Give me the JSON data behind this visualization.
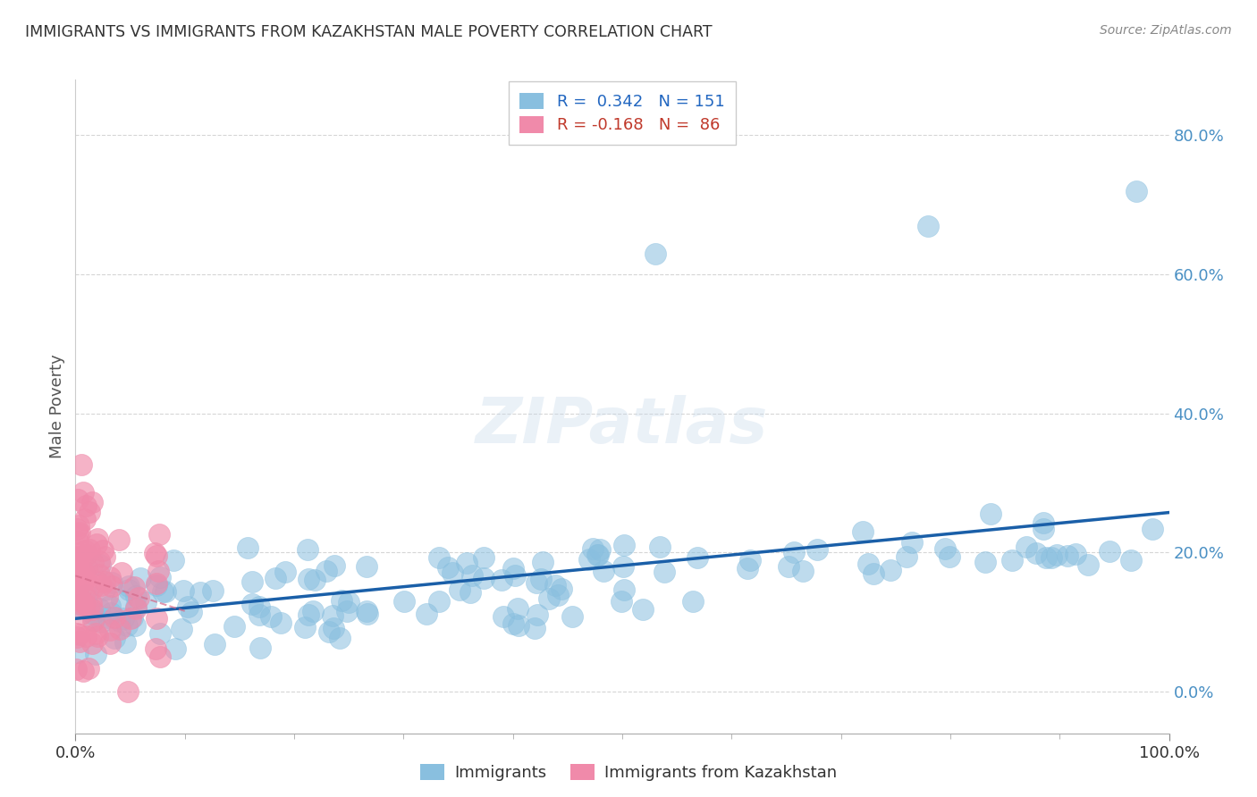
{
  "title": "IMMIGRANTS VS IMMIGRANTS FROM KAZAKHSTAN MALE POVERTY CORRELATION CHART",
  "source": "Source: ZipAtlas.com",
  "ylabel": "Male Poverty",
  "legend_label_1": "Immigrants",
  "legend_label_2": "Immigrants from Kazakhstan",
  "R1": 0.342,
  "N1": 151,
  "R2": -0.168,
  "N2": 86,
  "blue_color": "#89bfdf",
  "pink_color": "#f08aaa",
  "blue_line_color": "#1a5fa8",
  "pink_line_color": "#d46a8a",
  "background_color": "#ffffff",
  "grid_color": "#cccccc",
  "title_color": "#333333",
  "source_color": "#888888",
  "legend_R_color": "#2166c0",
  "legend_R2_color": "#c0392b",
  "xmin": 0.0,
  "xmax": 1.0,
  "ymin": -0.06,
  "ymax": 0.88,
  "yticks": [
    0.0,
    0.2,
    0.4,
    0.6,
    0.8
  ],
  "ytick_labels": [
    "0.0%",
    "20.0%",
    "40.0%",
    "60.0%",
    "80.0%"
  ],
  "xticks": [
    0.0,
    1.0
  ],
  "xtick_labels": [
    "0.0%",
    "100.0%"
  ]
}
